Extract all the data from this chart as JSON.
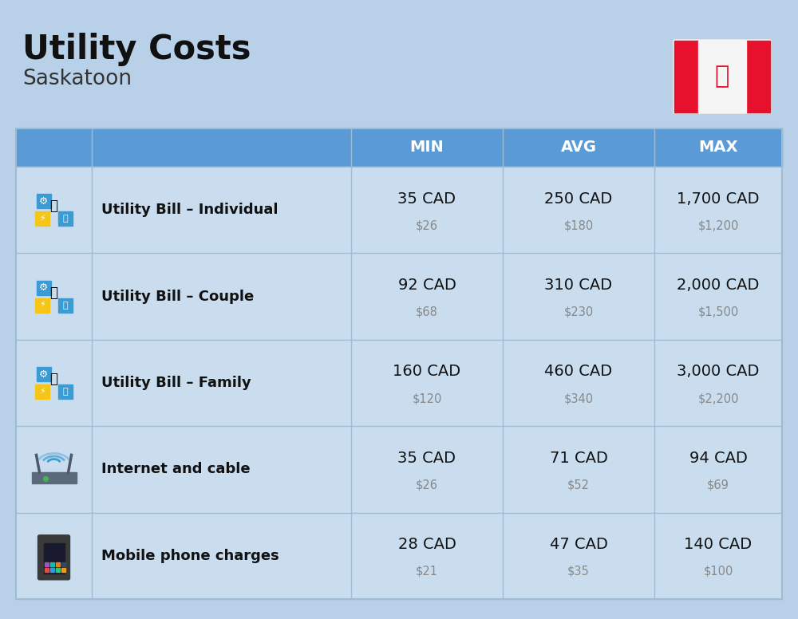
{
  "title": "Utility Costs",
  "subtitle": "Saskatoon",
  "background_color": "#b8d0e8",
  "header_color": "#5b9bd5",
  "header_text_color": "#ffffff",
  "row_color": "#c9ddef",
  "separator_color": "#a0bcd4",
  "title_fontsize": 30,
  "subtitle_fontsize": 19,
  "col_headers": [
    "MIN",
    "AVG",
    "MAX"
  ],
  "rows": [
    {
      "label": "Utility Bill – Individual",
      "min_cad": "35 CAD",
      "min_usd": "$26",
      "avg_cad": "250 CAD",
      "avg_usd": "$180",
      "max_cad": "1,700 CAD",
      "max_usd": "$1,200"
    },
    {
      "label": "Utility Bill – Couple",
      "min_cad": "92 CAD",
      "min_usd": "$68",
      "avg_cad": "310 CAD",
      "avg_usd": "$230",
      "max_cad": "2,000 CAD",
      "max_usd": "$1,500"
    },
    {
      "label": "Utility Bill – Family",
      "min_cad": "160 CAD",
      "min_usd": "$120",
      "avg_cad": "460 CAD",
      "avg_usd": "$340",
      "max_cad": "3,000 CAD",
      "max_usd": "$2,200"
    },
    {
      "label": "Internet and cable",
      "min_cad": "35 CAD",
      "min_usd": "$26",
      "avg_cad": "71 CAD",
      "avg_usd": "$52",
      "max_cad": "94 CAD",
      "max_usd": "$69"
    },
    {
      "label": "Mobile phone charges",
      "min_cad": "28 CAD",
      "min_usd": "$21",
      "avg_cad": "47 CAD",
      "avg_usd": "$35",
      "max_cad": "140 CAD",
      "max_usd": "$100"
    }
  ],
  "flag_red": "#E8112D",
  "flag_white": "#F5F5F5"
}
